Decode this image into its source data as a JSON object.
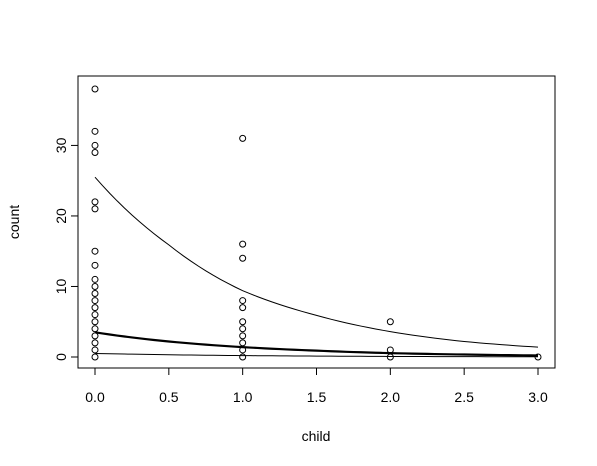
{
  "chart_data": {
    "type": "scatter",
    "title": "",
    "xlabel": "child",
    "ylabel": "count",
    "xlim": [
      0,
      3
    ],
    "ylim": [
      0,
      38
    ],
    "xticks": [
      0.0,
      0.5,
      1.0,
      1.5,
      2.0,
      2.5,
      3.0
    ],
    "xtick_labels": [
      "0.0",
      "0.5",
      "1.0",
      "1.5",
      "2.0",
      "2.5",
      "3.0"
    ],
    "yticks": [
      0,
      10,
      20,
      30
    ],
    "ytick_labels": [
      "0",
      "10",
      "20",
      "30"
    ],
    "grid": false,
    "legend": "none",
    "points": [
      {
        "x": 0,
        "y": 38
      },
      {
        "x": 0,
        "y": 32
      },
      {
        "x": 0,
        "y": 30
      },
      {
        "x": 0,
        "y": 29
      },
      {
        "x": 0,
        "y": 22
      },
      {
        "x": 0,
        "y": 21
      },
      {
        "x": 0,
        "y": 15
      },
      {
        "x": 0,
        "y": 13
      },
      {
        "x": 0,
        "y": 11
      },
      {
        "x": 0,
        "y": 10
      },
      {
        "x": 0,
        "y": 9
      },
      {
        "x": 0,
        "y": 8
      },
      {
        "x": 0,
        "y": 7
      },
      {
        "x": 0,
        "y": 6
      },
      {
        "x": 0,
        "y": 5
      },
      {
        "x": 0,
        "y": 4
      },
      {
        "x": 0,
        "y": 3
      },
      {
        "x": 0,
        "y": 2
      },
      {
        "x": 0,
        "y": 1
      },
      {
        "x": 0,
        "y": 0
      },
      {
        "x": 1,
        "y": 31
      },
      {
        "x": 1,
        "y": 16
      },
      {
        "x": 1,
        "y": 14
      },
      {
        "x": 1,
        "y": 8
      },
      {
        "x": 1,
        "y": 7
      },
      {
        "x": 1,
        "y": 5
      },
      {
        "x": 1,
        "y": 4
      },
      {
        "x": 1,
        "y": 3
      },
      {
        "x": 1,
        "y": 2
      },
      {
        "x": 1,
        "y": 1
      },
      {
        "x": 1,
        "y": 0
      },
      {
        "x": 2,
        "y": 5
      },
      {
        "x": 2,
        "y": 1
      },
      {
        "x": 2,
        "y": 0
      },
      {
        "x": 3,
        "y": 0
      }
    ],
    "curves": [
      {
        "x": [
          0,
          0.5,
          1,
          1.5,
          2,
          2.5,
          3
        ],
        "y": [
          25.5,
          15.9,
          9.4,
          5.9,
          3.6,
          2.2,
          1.4
        ],
        "stroke_width": 1
      },
      {
        "x": [
          0,
          0.5,
          1,
          1.5,
          2,
          2.5,
          3
        ],
        "y": [
          3.5,
          2.2,
          1.4,
          0.9,
          0.55,
          0.35,
          0.22
        ],
        "stroke_width": 2.2
      },
      {
        "x": [
          0,
          0.5,
          1,
          1.5,
          2,
          2.5,
          3
        ],
        "y": [
          0.5,
          0.32,
          0.2,
          0.13,
          0.08,
          0.05,
          0.03
        ],
        "stroke_width": 1
      }
    ]
  }
}
